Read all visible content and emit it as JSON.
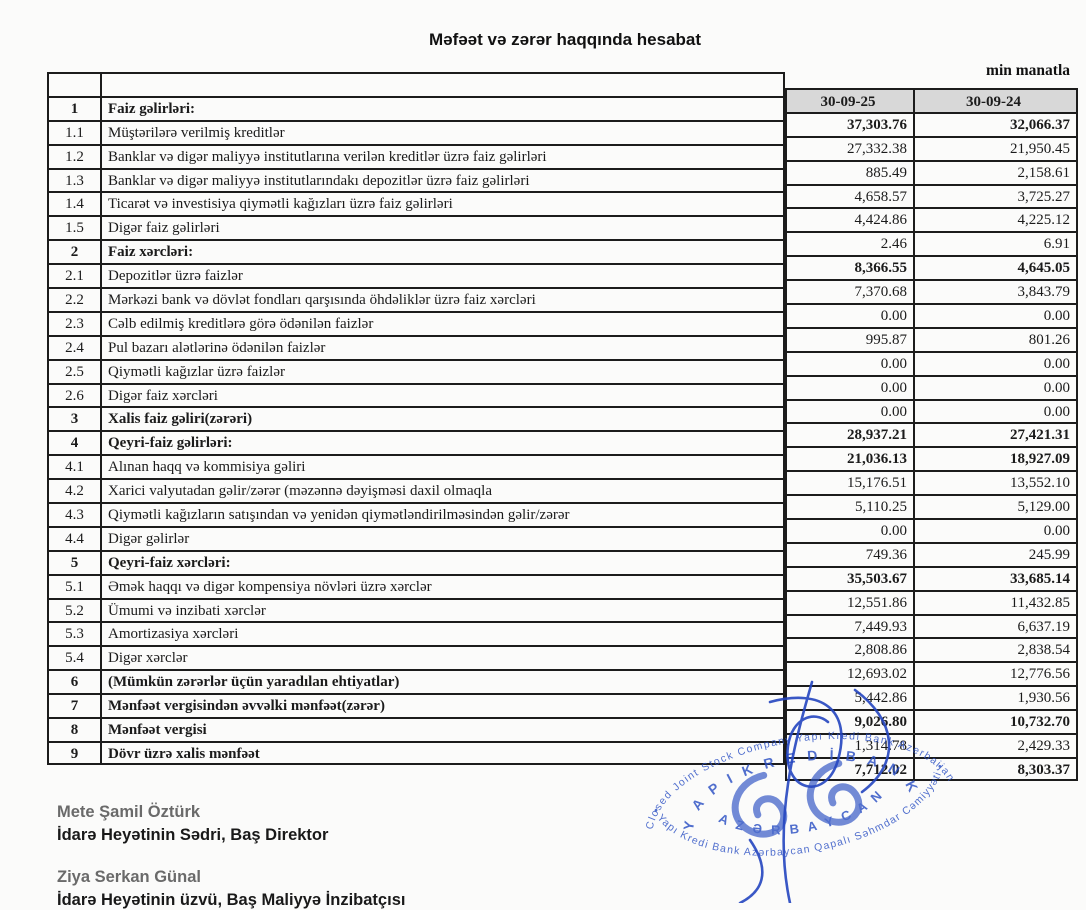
{
  "title": "Məfəət və zərər haqqında hesabat",
  "unit_note": "min manatla",
  "table": {
    "columns": [
      "30-09-25",
      "30-09-24"
    ],
    "rows": [
      {
        "num": "1",
        "label": "Faiz gəlirləri:",
        "v25": "37,303.76",
        "v24": "32,066.37",
        "section": true,
        "value_bold": true
      },
      {
        "num": "1.1",
        "label": "Müştərilərə verilmiş kreditlər",
        "v25": "27,332.38",
        "v24": "21,950.45",
        "section": false,
        "value_bold": false
      },
      {
        "num": "1.2",
        "label": "Banklar və digər maliyyə institutlarına verilən kreditlər üzrə faiz gəlirləri",
        "v25": "885.49",
        "v24": "2,158.61",
        "section": false,
        "value_bold": false
      },
      {
        "num": "1.3",
        "label": "Banklar və digər maliyyə institutlarındakı depozitlər üzrə faiz gəlirləri",
        "v25": "4,658.57",
        "v24": "3,725.27",
        "section": false,
        "value_bold": false
      },
      {
        "num": "1.4",
        "label": "Ticarət və investisiya qiymətli kağızları üzrə faiz gəlirləri",
        "v25": "4,424.86",
        "v24": "4,225.12",
        "section": false,
        "value_bold": false
      },
      {
        "num": "1.5",
        "label": "Digər faiz gəlirləri",
        "v25": "2.46",
        "v24": "6.91",
        "section": false,
        "value_bold": false
      },
      {
        "num": "2",
        "label": "Faiz xərcləri:",
        "v25": "8,366.55",
        "v24": "4,645.05",
        "section": true,
        "value_bold": true
      },
      {
        "num": "2.1",
        "label": "Depozitlər üzrə faizlər",
        "v25": "7,370.68",
        "v24": "3,843.79",
        "section": false,
        "value_bold": false
      },
      {
        "num": "2.2",
        "label": "Mərkəzi bank və dövlət fondları qarşısında öhdəliklər üzrə faiz xərcləri",
        "v25": "0.00",
        "v24": "0.00",
        "section": false,
        "value_bold": false
      },
      {
        "num": "2.3",
        "label": "Cəlb edilmiş kreditlərə görə ödənilən faizlər",
        "v25": "995.87",
        "v24": "801.26",
        "section": false,
        "value_bold": false
      },
      {
        "num": "2.4",
        "label": "Pul bazarı alətlərinə ödənilən faizlər",
        "v25": "0.00",
        "v24": "0.00",
        "section": false,
        "value_bold": false
      },
      {
        "num": "2.5",
        "label": "Qiymətli kağızlar üzrə faizlər",
        "v25": "0.00",
        "v24": "0.00",
        "section": false,
        "value_bold": false
      },
      {
        "num": "2.6",
        "label": "Digər faiz xərcləri",
        "v25": "0.00",
        "v24": "0.00",
        "section": false,
        "value_bold": false
      },
      {
        "num": "3",
        "label": "Xalis faiz gəliri(zərəri)",
        "v25": "28,937.21",
        "v24": "27,421.31",
        "section": true,
        "value_bold": true
      },
      {
        "num": "4",
        "label": "Qeyri-faiz gəlirləri:",
        "v25": "21,036.13",
        "v24": "18,927.09",
        "section": true,
        "value_bold": true
      },
      {
        "num": "4.1",
        "label": "Alınan haqq və kommisiya gəliri",
        "v25": "15,176.51",
        "v24": "13,552.10",
        "section": false,
        "value_bold": false
      },
      {
        "num": "4.2",
        "label": "Xarici valyutadan gəlir/zərər (məzənnə dəyişməsi daxil olmaqla",
        "v25": "5,110.25",
        "v24": "5,129.00",
        "section": false,
        "value_bold": false
      },
      {
        "num": "4.3",
        "label": "Qiymətli kağızların satışından və yenidən qiymətləndirilməsindən gəlir/zərər",
        "v25": "0.00",
        "v24": "0.00",
        "section": false,
        "value_bold": false
      },
      {
        "num": "4.4",
        "label": "Digər gəlirlər",
        "v25": "749.36",
        "v24": "245.99",
        "section": false,
        "value_bold": false
      },
      {
        "num": "5",
        "label": "Qeyri-faiz xərcləri:",
        "v25": "35,503.67",
        "v24": "33,685.14",
        "section": true,
        "value_bold": true
      },
      {
        "num": "5.1",
        "label": "Əmək haqqı və digər kompensiya növləri üzrə xərclər",
        "v25": "12,551.86",
        "v24": "11,432.85",
        "section": false,
        "value_bold": false
      },
      {
        "num": "5.2",
        "label": "Ümumi və inzibati xərclər",
        "v25": "7,449.93",
        "v24": "6,637.19",
        "section": false,
        "value_bold": false
      },
      {
        "num": "5.3",
        "label": "Amortizasiya xərcləri",
        "v25": "2,808.86",
        "v24": "2,838.54",
        "section": false,
        "value_bold": false
      },
      {
        "num": "5.4",
        "label": "Digər xərclər",
        "v25": "12,693.02",
        "v24": "12,776.56",
        "section": false,
        "value_bold": false
      },
      {
        "num": "6",
        "label": "(Mümkün zərərlər üçün yaradılan ehtiyatlar)",
        "v25": "5,442.86",
        "v24": "1,930.56",
        "section": true,
        "value_bold": false
      },
      {
        "num": "7",
        "label": "Mənfəət vergisindən əvvəlki mənfəət(zərər)",
        "v25": "9,026.80",
        "v24": "10,732.70",
        "section": true,
        "value_bold": true
      },
      {
        "num": "8",
        "label": "Mənfəət vergisi",
        "v25": "1,314.78",
        "v24": "2,429.33",
        "section": true,
        "value_bold": false
      },
      {
        "num": "9",
        "label": "Dövr üzrə xalis mənfəət",
        "v25": "7,712.02",
        "v24": "8,303.37",
        "section": true,
        "value_bold": true
      }
    ]
  },
  "signatories": [
    {
      "name": "Mete Şamil Öztürk",
      "title": "İdarə Heyətinin Sədri, Baş Direktor"
    },
    {
      "name": "Ziya Serkan Günal",
      "title": "İdarə Heyətinin üzvü, Baş Maliyyə İnzibatçısı"
    }
  ],
  "stamp": {
    "outer_top": "Closed Joint Stock Company Yapı Kredi Bank Azerbaijan",
    "outer_bottom": "• Yapı Kredi Bank Azərbaycan Qapalı Səhmdar Cəmiyyəti •",
    "inner_top": "Y A P I  K R E D İ  B A N K",
    "inner_bottom": "A Z Ə R B A Y C A N"
  },
  "colors": {
    "header_bg": "#d8d8d8",
    "table_border": "#1c1c1c",
    "stamp_blue": "#2b50c4",
    "ink_blue": "#2546c0"
  }
}
